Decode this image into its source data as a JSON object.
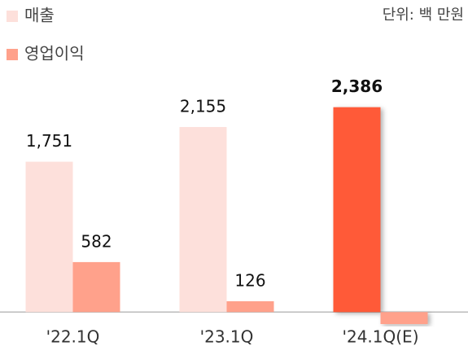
{
  "chart_data": {
    "type": "bar",
    "unit_note": "단위: 백 만원",
    "categories": [
      "'22.1Q",
      "'23.1Q",
      "'24.1Q(E)"
    ],
    "series": [
      {
        "name": "매출",
        "color": "#fde0db",
        "colors": [
          "#fde0db",
          "#fde0db",
          "#ff5a38"
        ],
        "values": [
          1751,
          2155,
          2386
        ],
        "value_labels": [
          "1,751",
          "2,155",
          "2,386"
        ]
      },
      {
        "name": "영업이익",
        "color": "#ffa18b",
        "colors": [
          "#ffa18b",
          "#ffa18b",
          "#ffa18b"
        ],
        "values": [
          582,
          126,
          -140
        ],
        "value_labels": [
          "582",
          "126",
          null
        ]
      }
    ],
    "ylim": [
      -500,
      2800
    ],
    "legend": "top-left"
  }
}
